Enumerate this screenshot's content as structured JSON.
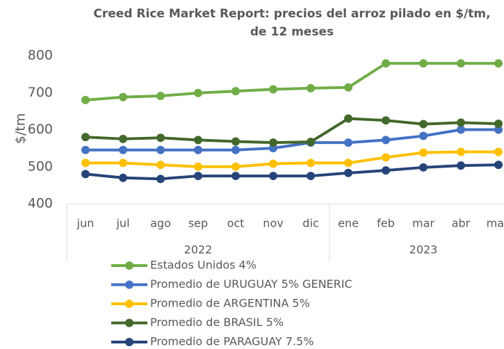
{
  "chart_data": {
    "type": "line",
    "title": [
      "Creed Rice Market Report: precios del arroz pilado en $/tm,",
      "de 12 meses"
    ],
    "ylabel": "$/tm",
    "categories": [
      "jun",
      "jul",
      "ago",
      "sep",
      "oct",
      "nov",
      "dic",
      "ene",
      "feb",
      "mar",
      "abr",
      "may"
    ],
    "groups": [
      {
        "name": "2022",
        "count": 7
      },
      {
        "name": "2023",
        "count": 5
      }
    ],
    "ylim": [
      400,
      800
    ],
    "yticks": [
      400,
      500,
      600,
      700,
      800
    ],
    "grid": false,
    "legend": "bottom",
    "series": [
      {
        "name": "Estados Unidos 4%",
        "color": "#70ad47",
        "values": [
          680,
          688,
          691,
          699,
          704,
          709,
          712,
          714,
          779,
          779,
          779,
          779
        ]
      },
      {
        "name": "Promedio de URUGUAY 5% GENERIC",
        "color": "#4472c4",
        "values": [
          545,
          545,
          545,
          545,
          545,
          550,
          565,
          565,
          572,
          583,
          600,
          600
        ]
      },
      {
        "name": "Promedio de ARGENTINA 5%",
        "color": "#ffc000",
        "values": [
          510,
          510,
          505,
          500,
          500,
          508,
          510,
          510,
          525,
          538,
          540,
          540
        ]
      },
      {
        "name": "Promedio de BRASIL 5%",
        "color": "#43682b",
        "values": [
          580,
          575,
          578,
          572,
          568,
          565,
          567,
          630,
          625,
          615,
          619,
          616
        ]
      },
      {
        "name": "Promedio de PARAGUAY 7.5%",
        "color": "#264478",
        "values": [
          480,
          470,
          467,
          475,
          475,
          475,
          475,
          483,
          490,
          498,
          503,
          505
        ]
      }
    ]
  }
}
